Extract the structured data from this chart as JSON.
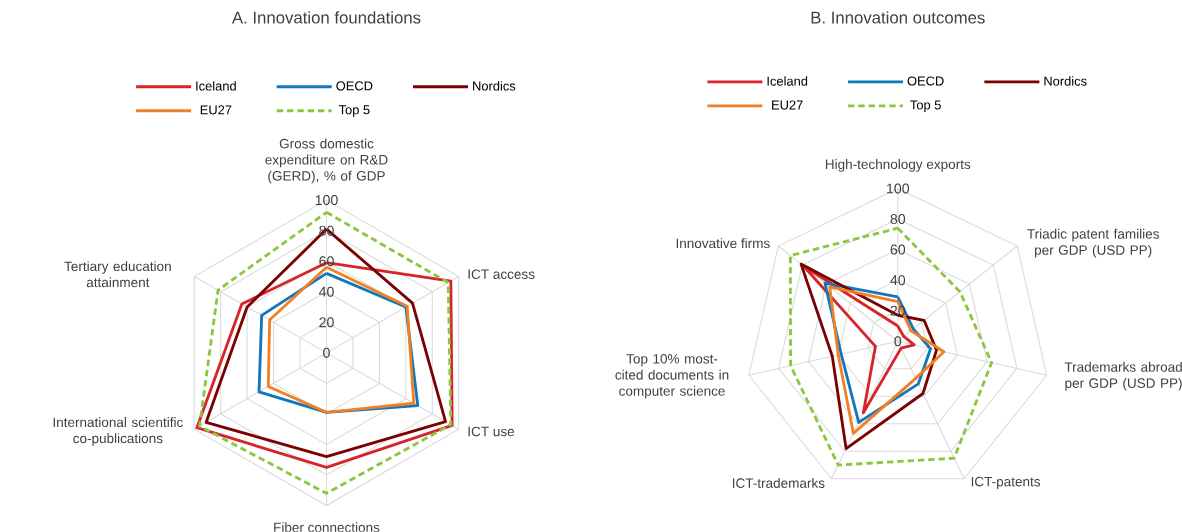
{
  "chart_data": [
    {
      "type": "radar",
      "title": "A. Innovation foundations",
      "categories": [
        "Gross domestic expenditure on R&D (GERD), % of GDP",
        "ICT access",
        "ICT use",
        "Fiber connections",
        "International scientific co-publications",
        "Tertiary education attainment"
      ],
      "ylim": [
        0,
        100
      ],
      "yticks": [
        0,
        20,
        40,
        60,
        80,
        100
      ],
      "grid": true,
      "legend": "top",
      "line_style": "solid",
      "series": [
        {
          "name": "Iceland",
          "color": "#d7242b",
          "values": [
            59,
            94,
            95,
            75,
            98,
            64
          ]
        },
        {
          "name": "OECD",
          "color": "#1177bb",
          "values": [
            52,
            60,
            69,
            39,
            51,
            49
          ]
        },
        {
          "name": "Nordics",
          "color": "#7b0000",
          "values": [
            81,
            65,
            90,
            68,
            91,
            60
          ]
        },
        {
          "name": "EU27",
          "color": "#f07f25",
          "values": [
            56,
            61,
            66,
            39,
            44,
            43
          ]
        },
        {
          "name": "Top 5",
          "color": "#8cc63f",
          "line_style": "dashed",
          "values": [
            92,
            92,
            94,
            92,
            96,
            82
          ]
        }
      ]
    },
    {
      "type": "radar",
      "title": "B. Innovation outcomes",
      "categories": [
        "High-technology exports",
        "Triadic patent families per GDP (USD PP)",
        "Trademarks abroad per GDP (USD PP)",
        "ICT-patents",
        "ICT-trademarks",
        "Top 10% most-cited documents in computer science",
        "Innovative firms"
      ],
      "ylim": [
        0,
        100
      ],
      "yticks": [
        0,
        20,
        40,
        60,
        80,
        100
      ],
      "grid": true,
      "legend": "top",
      "line_style": "solid",
      "series": [
        {
          "name": "Iceland",
          "color": "#d7242b",
          "values": [
            10,
            5,
            11,
            5,
            52,
            15,
            79
          ]
        },
        {
          "name": "OECD",
          "color": "#1177bb",
          "values": [
            29,
            13,
            22,
            31,
            59,
            38,
            61
          ]
        },
        {
          "name": "Nordics",
          "color": "#7b0000",
          "values": [
            17,
            22,
            26,
            38,
            78,
            44,
            81
          ]
        },
        {
          "name": "EU27",
          "color": "#f07f25",
          "values": [
            26,
            11,
            31,
            27,
            67,
            40,
            57
          ]
        },
        {
          "name": "Top 5",
          "color": "#8cc63f",
          "line_style": "dashed",
          "values": [
            74,
            52,
            63,
            85,
            90,
            72,
            90
          ]
        }
      ]
    }
  ]
}
